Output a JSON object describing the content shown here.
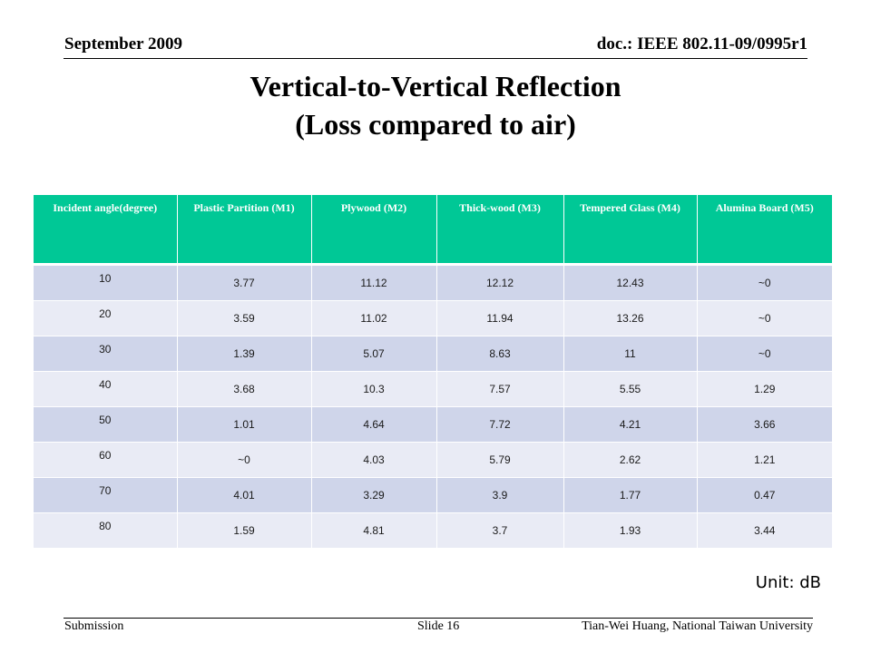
{
  "header": {
    "date": "September 2009",
    "doc_id": "doc.: IEEE 802.11-09/0995r1"
  },
  "title": {
    "line1": "Vertical-to-Vertical Reflection",
    "line2": "(Loss compared to air)"
  },
  "table": {
    "columns": [
      "Incident angle(degree)",
      "Plastic Partition (M1)",
      "Plywood (M2)",
      "Thick-wood (M3)",
      "Tempered Glass (M4)",
      "Alumina Board (M5)"
    ],
    "rows": [
      [
        "10",
        "3.77",
        "11.12",
        "12.12",
        "12.43",
        "~0"
      ],
      [
        "20",
        "3.59",
        "11.02",
        "11.94",
        "13.26",
        "~0"
      ],
      [
        "30",
        "1.39",
        "5.07",
        "8.63",
        "11",
        "~0"
      ],
      [
        "40",
        "3.68",
        "10.3",
        "7.57",
        "5.55",
        "1.29"
      ],
      [
        "50",
        "1.01",
        "4.64",
        "7.72",
        "4.21",
        "3.66"
      ],
      [
        "60",
        "~0",
        "4.03",
        "5.79",
        "2.62",
        "1.21"
      ],
      [
        "70",
        "4.01",
        "3.29",
        "3.9",
        "1.77",
        "0.47"
      ],
      [
        "80",
        "1.59",
        "4.81",
        "3.7",
        "1.93",
        "3.44"
      ]
    ]
  },
  "unit_label": "Unit: dB",
  "footer": {
    "left": "Submission",
    "slide": "Slide 16",
    "author": "Tian-Wei Huang, National Taiwan University"
  },
  "colors": {
    "header_fill": "#00c896",
    "row_dark": "#cfd5ea",
    "row_light": "#e9ebf5"
  }
}
